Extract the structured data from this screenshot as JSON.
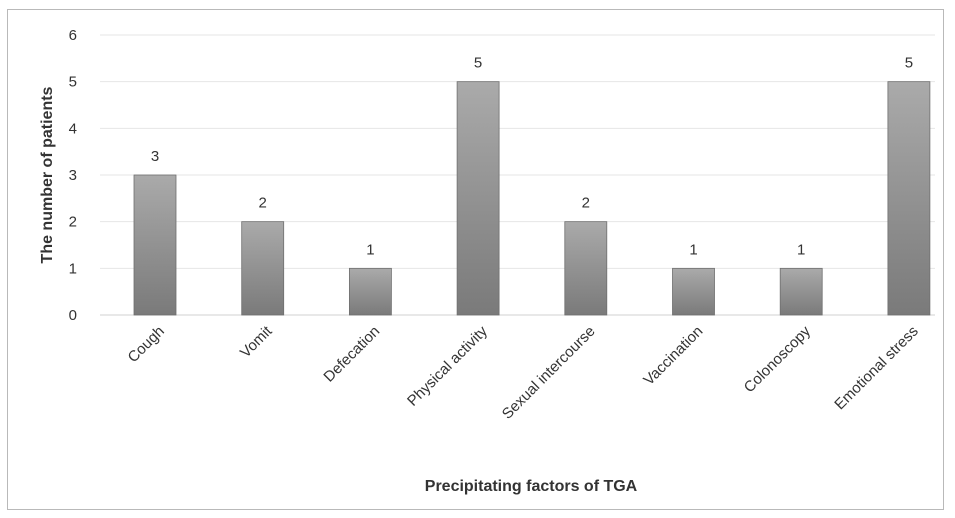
{
  "chart_data": {
    "type": "bar",
    "title": "",
    "xlabel": "Precipitating factors of TGA",
    "ylabel": "The number of patients",
    "categories": [
      "Cough",
      "Vomit",
      "Defecation",
      "Physical activity",
      "Sexual intercourse",
      "Vaccination",
      "Colonoscopy",
      "Emotional stress"
    ],
    "values": [
      3,
      2,
      1,
      5,
      2,
      1,
      1,
      5
    ],
    "ylim": [
      0,
      6
    ],
    "yticks": [
      "0",
      "1",
      "2",
      "3",
      "4",
      "5",
      "6"
    ],
    "data_labels": [
      "3",
      "2",
      "1",
      "5",
      "2",
      "1",
      "1",
      "5"
    ],
    "grid": true,
    "legend": "none",
    "colors": {
      "bar_top": "#aaaaaa",
      "bar_bottom": "#7a7a7a",
      "bar_edge": "#6f6f6f",
      "grid": "#e6e6e6",
      "axis": "#d0d0d0"
    }
  }
}
